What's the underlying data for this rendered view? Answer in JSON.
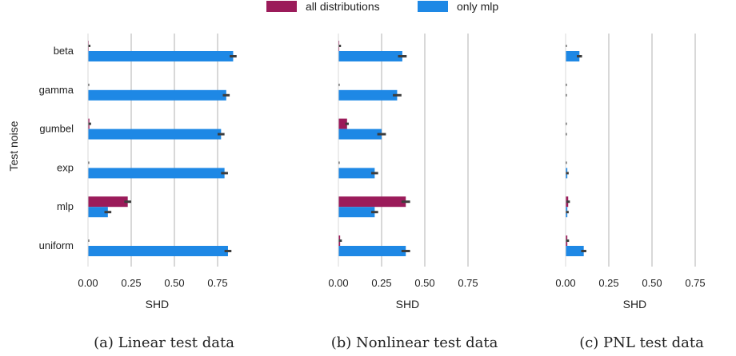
{
  "legend": {
    "items": [
      {
        "label": "all distributions",
        "color": "#9B1B5A"
      },
      {
        "label": "only mlp",
        "color": "#1E88E5"
      }
    ]
  },
  "ylabel": "Test noise",
  "captions": [
    "(a) Linear test data",
    "(b) Nonlinear test data",
    "(c) PNL test data"
  ],
  "chart_data": [
    {
      "type": "bar",
      "orientation": "horizontal",
      "caption": "(a) Linear test data",
      "categories": [
        "beta",
        "gamma",
        "gumbel",
        "exp",
        "mlp",
        "uniform"
      ],
      "xlabel": "SHD",
      "ylabel": "Test noise",
      "xlim": [
        0,
        0.95
      ],
      "xticks": [
        "0.00",
        "0.25",
        "0.50",
        "0.75"
      ],
      "grid": "vertical",
      "series": [
        {
          "name": "all distributions",
          "color": "#9B1B5A",
          "values": [
            0.004,
            0.0,
            0.008,
            0.0,
            0.23,
            0.0
          ],
          "err": [
            0.01,
            0.005,
            0.01,
            0.004,
            0.02,
            0.005
          ]
        },
        {
          "name": "only mlp",
          "color": "#1E88E5",
          "values": [
            0.84,
            0.8,
            0.77,
            0.79,
            0.115,
            0.81
          ],
          "err": [
            0.02,
            0.02,
            0.02,
            0.02,
            0.02,
            0.02
          ]
        }
      ]
    },
    {
      "type": "bar",
      "orientation": "horizontal",
      "caption": "(b) Nonlinear test data",
      "categories": [
        "beta",
        "gamma",
        "gumbel",
        "exp",
        "mlp",
        "uniform"
      ],
      "xlabel": "SHD",
      "xlim": [
        0,
        0.95
      ],
      "xticks": [
        "0.00",
        "0.25",
        "0.50",
        "0.75"
      ],
      "grid": "vertical",
      "series": [
        {
          "name": "all distributions",
          "color": "#9B1B5A",
          "values": [
            0.005,
            0.0,
            0.05,
            0.0,
            0.39,
            0.01
          ],
          "err": [
            0.01,
            0.005,
            0.01,
            0.004,
            0.025,
            0.01
          ]
        },
        {
          "name": "only mlp",
          "color": "#1E88E5",
          "values": [
            0.37,
            0.34,
            0.25,
            0.21,
            0.21,
            0.39
          ],
          "err": [
            0.025,
            0.025,
            0.025,
            0.02,
            0.02,
            0.025
          ]
        }
      ]
    },
    {
      "type": "bar",
      "orientation": "horizontal",
      "caption": "(c) PNL test data",
      "categories": [
        "beta",
        "gamma",
        "gumbel",
        "exp",
        "mlp",
        "uniform"
      ],
      "xlabel": "SHD",
      "xlim": [
        0,
        0.95
      ],
      "xticks": [
        "0.00",
        "0.25",
        "0.50",
        "0.75"
      ],
      "grid": "vertical",
      "series": [
        {
          "name": "all distributions",
          "color": "#9B1B5A",
          "values": [
            0.0,
            0.0,
            0.0,
            0.0,
            0.015,
            0.01
          ],
          "err": [
            0.004,
            0.004,
            0.004,
            0.004,
            0.01,
            0.01
          ]
        },
        {
          "name": "only mlp",
          "color": "#1E88E5",
          "values": [
            0.08,
            0.0,
            0.0,
            0.01,
            0.01,
            0.105
          ],
          "err": [
            0.015,
            0.004,
            0.004,
            0.008,
            0.008,
            0.015
          ]
        }
      ]
    }
  ]
}
